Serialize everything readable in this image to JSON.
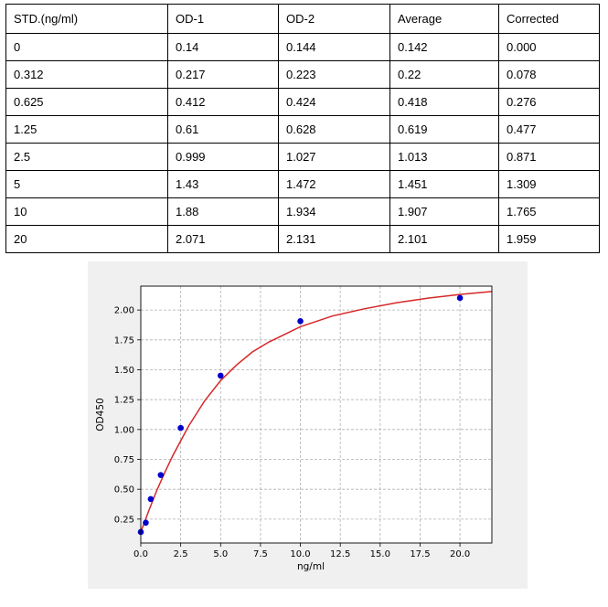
{
  "table": {
    "headers": [
      "STD.(ng/ml)",
      "OD-1",
      "OD-2",
      "Average",
      "Corrected"
    ],
    "rows": [
      [
        "0",
        "0.14",
        "0.144",
        "0.142",
        "0.000"
      ],
      [
        "0.312",
        "0.217",
        "0.223",
        "0.22",
        "0.078"
      ],
      [
        "0.625",
        "0.412",
        "0.424",
        "0.418",
        "0.276"
      ],
      [
        "1.25",
        "0.61",
        "0.628",
        "0.619",
        "0.477"
      ],
      [
        "2.5",
        "0.999",
        "1.027",
        "1.013",
        "0.871"
      ],
      [
        "5",
        "1.43",
        "1.472",
        "1.451",
        "1.309"
      ],
      [
        "10",
        "1.88",
        "1.934",
        "1.907",
        "1.765"
      ],
      [
        "20",
        "2.071",
        "2.131",
        "2.101",
        "1.959"
      ]
    ]
  },
  "chart_data": {
    "type": "scatter",
    "title": "",
    "xlabel": "ng/ml",
    "ylabel": "OD450",
    "xlim": [
      0,
      22
    ],
    "ylim": [
      0.05,
      2.2
    ],
    "xticks": [
      "0.0",
      "2.5",
      "5.0",
      "7.5",
      "10.0",
      "12.5",
      "15.0",
      "17.5",
      "20.0"
    ],
    "yticks": [
      "0.25",
      "0.50",
      "0.75",
      "1.00",
      "1.25",
      "1.50",
      "1.75",
      "2.00"
    ],
    "grid": true,
    "points": {
      "x": [
        0,
        0.312,
        0.625,
        1.25,
        2.5,
        5,
        10,
        20
      ],
      "y": [
        0.142,
        0.22,
        0.418,
        0.619,
        1.013,
        1.451,
        1.907,
        2.101
      ],
      "color": "#0000cc"
    },
    "fit_curve": {
      "color": "#d62728",
      "x": [
        0,
        0.5,
        1,
        1.5,
        2,
        3,
        4,
        5,
        6,
        7,
        8,
        10,
        12,
        14,
        16,
        18,
        20,
        22
      ],
      "y": [
        0.142,
        0.32,
        0.49,
        0.64,
        0.78,
        1.03,
        1.24,
        1.41,
        1.54,
        1.65,
        1.73,
        1.86,
        1.95,
        2.01,
        2.06,
        2.1,
        2.13,
        2.155
      ]
    }
  }
}
